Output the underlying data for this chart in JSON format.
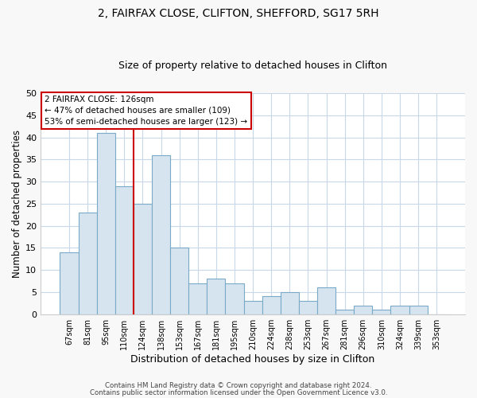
{
  "title1": "2, FAIRFAX CLOSE, CLIFTON, SHEFFORD, SG17 5RH",
  "title2": "Size of property relative to detached houses in Clifton",
  "xlabel": "Distribution of detached houses by size in Clifton",
  "ylabel": "Number of detached properties",
  "bar_labels": [
    "67sqm",
    "81sqm",
    "95sqm",
    "110sqm",
    "124sqm",
    "138sqm",
    "153sqm",
    "167sqm",
    "181sqm",
    "195sqm",
    "210sqm",
    "224sqm",
    "238sqm",
    "253sqm",
    "267sqm",
    "281sqm",
    "296sqm",
    "310sqm",
    "324sqm",
    "339sqm",
    "353sqm"
  ],
  "bar_values": [
    14,
    23,
    41,
    29,
    25,
    36,
    15,
    7,
    8,
    7,
    3,
    4,
    5,
    3,
    6,
    1,
    2,
    1,
    2,
    2,
    0
  ],
  "bar_color": "#d6e4f0",
  "bar_edge_color": "#7aaac8",
  "vline_x_index": 4,
  "vline_color": "#cc0000",
  "annotation_line1": "2 FAIRFAX CLOSE: 126sqm",
  "annotation_line2": "← 47% of detached houses are smaller (109)",
  "annotation_line3": "53% of semi-detached houses are larger (123) →",
  "ylim": [
    0,
    50
  ],
  "yticks": [
    0,
    5,
    10,
    15,
    20,
    25,
    30,
    35,
    40,
    45,
    50
  ],
  "footer_line1": "Contains HM Land Registry data © Crown copyright and database right 2024.",
  "footer_line2": "Contains public sector information licensed under the Open Government Licence v3.0.",
  "bg_color": "#f8f8f8",
  "plot_bg_color": "#ffffff",
  "grid_color": "#c8d8e8"
}
